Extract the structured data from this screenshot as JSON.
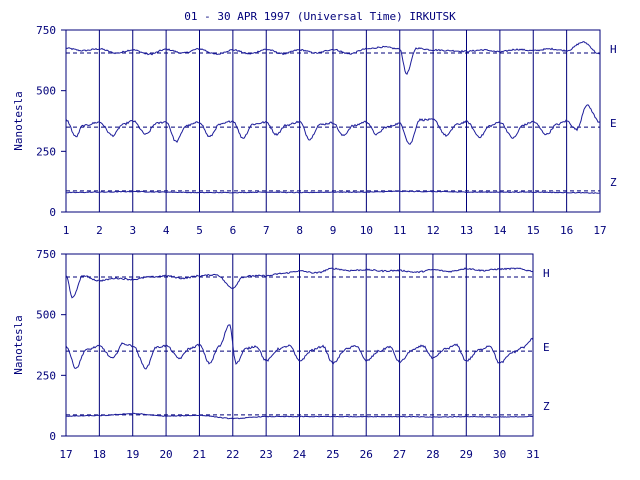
{
  "chart_data": [
    {
      "type": "line",
      "title": "01 - 30 APR 1997 (Universal Time) IRKUTSK",
      "ylabel": "Nanotesla",
      "xlim": [
        1,
        17
      ],
      "ylim": [
        0,
        750
      ],
      "x_ticks": [
        1,
        2,
        3,
        4,
        5,
        6,
        7,
        8,
        9,
        10,
        11,
        12,
        13,
        14,
        15,
        16,
        17
      ],
      "y_ticks": [
        0,
        250,
        500,
        750
      ],
      "grid": "vertical at each day",
      "baselines": [
        {
          "name": "H",
          "value": 655
        },
        {
          "name": "E",
          "value": 350
        },
        {
          "name": "Z",
          "value": 87
        }
      ],
      "series": [
        {
          "name": "H",
          "x": [
            1,
            1.5,
            2,
            2.5,
            3,
            3.5,
            4,
            4.5,
            5,
            5.5,
            6,
            6.5,
            7,
            7.5,
            8,
            8.5,
            9,
            9.5,
            10,
            10.5,
            11,
            11.2,
            11.5,
            12,
            12.5,
            13,
            13.5,
            14,
            14.5,
            15,
            15.5,
            16,
            16.5,
            17
          ],
          "values": [
            675,
            665,
            672,
            655,
            668,
            650,
            670,
            655,
            672,
            650,
            668,
            652,
            670,
            652,
            668,
            655,
            670,
            652,
            672,
            680,
            672,
            570,
            675,
            668,
            665,
            662,
            668,
            660,
            670,
            665,
            672,
            665,
            700,
            650
          ]
        },
        {
          "name": "E",
          "x": [
            1,
            1.3,
            1.5,
            2,
            2.4,
            2.7,
            3,
            3.4,
            3.7,
            4,
            4.3,
            4.6,
            5,
            5.3,
            5.6,
            6,
            6.3,
            6.6,
            7,
            7.3,
            7.6,
            8,
            8.3,
            8.6,
            9,
            9.3,
            9.6,
            10,
            10.3,
            10.6,
            11,
            11.3,
            11.6,
            12,
            12.4,
            12.7,
            13,
            13.4,
            13.7,
            14,
            14.4,
            14.7,
            15,
            15.4,
            15.7,
            16,
            16.3,
            16.6,
            17
          ],
          "values": [
            380,
            310,
            355,
            370,
            315,
            360,
            375,
            320,
            365,
            372,
            290,
            355,
            370,
            310,
            360,
            375,
            305,
            362,
            370,
            320,
            358,
            372,
            300,
            360,
            368,
            315,
            355,
            372,
            320,
            350,
            365,
            280,
            380,
            380,
            315,
            360,
            372,
            310,
            355,
            370,
            305,
            358,
            372,
            320,
            360,
            375,
            340,
            440,
            370
          ]
        },
        {
          "name": "Z",
          "x": [
            1,
            2,
            3,
            4,
            5,
            6,
            7,
            8,
            9,
            10,
            11,
            12,
            13,
            14,
            15,
            16,
            17
          ],
          "values": [
            80,
            82,
            84,
            82,
            80,
            80,
            82,
            80,
            82,
            82,
            85,
            84,
            82,
            82,
            82,
            80,
            78
          ]
        }
      ]
    },
    {
      "type": "line",
      "title": "",
      "ylabel": "Nanotesla",
      "xlim": [
        17,
        31
      ],
      "ylim": [
        0,
        750
      ],
      "x_ticks": [
        17,
        18,
        19,
        20,
        21,
        22,
        23,
        24,
        25,
        26,
        27,
        28,
        29,
        30,
        31
      ],
      "y_ticks": [
        0,
        250,
        500,
        750
      ],
      "grid": "vertical at each day",
      "baselines": [
        {
          "name": "H",
          "value": 655
        },
        {
          "name": "E",
          "value": 350
        },
        {
          "name": "Z",
          "value": 87
        }
      ],
      "series": [
        {
          "name": "H",
          "x": [
            17,
            17.2,
            17.5,
            18,
            18.5,
            19,
            19.5,
            20,
            20.5,
            21,
            21.5,
            22,
            22.3,
            22.6,
            23,
            23.5,
            24,
            24.5,
            25,
            25.5,
            26,
            26.5,
            27,
            27.5,
            28,
            28.5,
            29,
            29.5,
            30,
            30.5,
            31
          ],
          "values": [
            660,
            570,
            660,
            640,
            650,
            645,
            655,
            660,
            650,
            660,
            665,
            610,
            655,
            660,
            660,
            670,
            680,
            672,
            690,
            682,
            685,
            680,
            682,
            675,
            685,
            678,
            690,
            682,
            688,
            690,
            680
          ]
        },
        {
          "name": "E",
          "x": [
            17,
            17.3,
            17.6,
            18,
            18.4,
            18.7,
            19,
            19.4,
            19.7,
            20,
            20.4,
            20.7,
            21,
            21.3,
            21.6,
            21.9,
            22.1,
            22.4,
            22.7,
            23,
            23.4,
            23.7,
            24,
            24.4,
            24.7,
            25,
            25.4,
            25.7,
            26,
            26.4,
            26.7,
            27,
            27.4,
            27.7,
            28,
            28.4,
            28.7,
            29,
            29.4,
            29.7,
            30,
            30.4,
            30.7,
            31
          ],
          "values": [
            370,
            280,
            355,
            370,
            320,
            380,
            372,
            280,
            365,
            372,
            320,
            360,
            375,
            300,
            370,
            460,
            300,
            360,
            370,
            310,
            360,
            372,
            310,
            355,
            370,
            300,
            358,
            372,
            310,
            350,
            368,
            305,
            355,
            372,
            320,
            360,
            375,
            310,
            355,
            372,
            300,
            345,
            365,
            400
          ]
        },
        {
          "name": "Z",
          "x": [
            17,
            18,
            19,
            20,
            21,
            22,
            23,
            24,
            25,
            26,
            27,
            28,
            29,
            30,
            31
          ],
          "values": [
            82,
            84,
            92,
            82,
            85,
            72,
            80,
            80,
            80,
            80,
            80,
            78,
            80,
            78,
            80
          ]
        }
      ]
    }
  ],
  "colors": {
    "axis": "#00007a",
    "trace": "#1c1c9a",
    "baseline": "#00007a"
  }
}
